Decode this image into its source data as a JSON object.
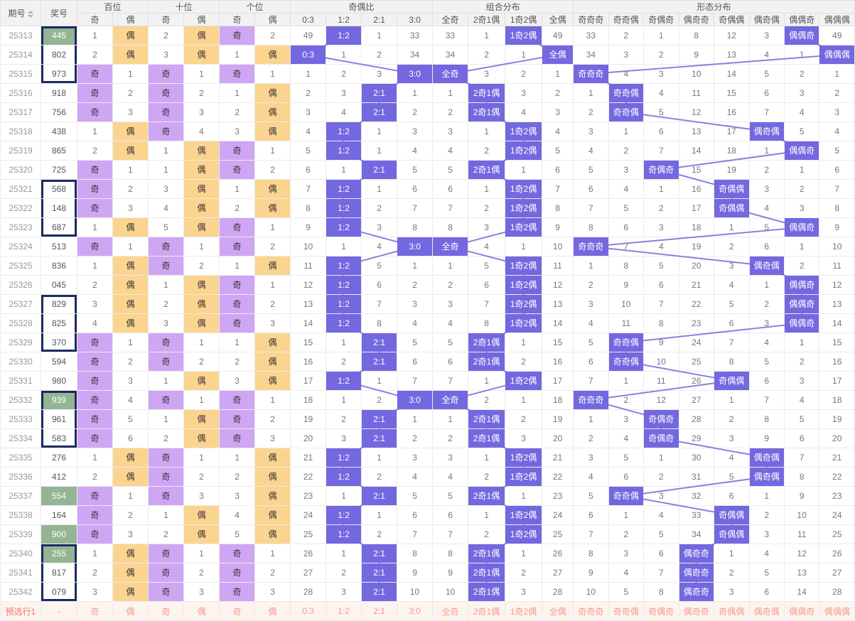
{
  "columns": {
    "period_label": "期号",
    "number_label": "奖号",
    "groups": [
      {
        "label": "百位",
        "cols": [
          "奇",
          "偶"
        ]
      },
      {
        "label": "十位",
        "cols": [
          "奇",
          "偶"
        ]
      },
      {
        "label": "个位",
        "cols": [
          "奇",
          "偶"
        ]
      },
      {
        "label": "奇偶比",
        "cols": [
          "0:3",
          "1:2",
          "2:1",
          "3:0"
        ]
      },
      {
        "label": "组合分布",
        "cols": [
          "全奇",
          "2奇1偶",
          "1奇2偶",
          "全偶"
        ]
      },
      {
        "label": "形态分布",
        "cols": [
          "奇奇奇",
          "奇奇偶",
          "奇偶奇",
          "偶奇奇",
          "奇偶偶",
          "偶奇偶",
          "偶偶奇",
          "偶偶偶"
        ]
      }
    ],
    "flat": [
      "奇",
      "偶",
      "奇",
      "偶",
      "奇",
      "偶",
      "0:3",
      "1:2",
      "2:1",
      "3:0",
      "全奇",
      "2奇1偶",
      "1奇2偶",
      "全偶",
      "奇奇奇",
      "奇奇偶",
      "奇偶奇",
      "偶奇奇",
      "奇偶偶",
      "偶奇偶",
      "偶偶奇",
      "偶偶偶"
    ]
  },
  "rows": [
    {
      "period": "25313",
      "number": "445",
      "green": true,
      "box": "top",
      "cells": [
        "1",
        "偶",
        "2",
        "偶",
        "奇",
        "2",
        "49",
        "1:2",
        "1",
        "33",
        "33",
        "1",
        "1奇2偶",
        "49",
        "33",
        "2",
        "1",
        "8",
        "12",
        "3",
        "偶偶奇",
        "49"
      ]
    },
    {
      "period": "25314",
      "number": "802",
      "green": false,
      "box": "mid",
      "cells": [
        "2",
        "偶",
        "3",
        "偶",
        "1",
        "偶",
        "0:3",
        "1",
        "2",
        "34",
        "34",
        "2",
        "1",
        "全偶",
        "34",
        "3",
        "2",
        "9",
        "13",
        "4",
        "1",
        "偶偶偶"
      ]
    },
    {
      "period": "25315",
      "number": "973",
      "green": false,
      "box": "bottom",
      "cells": [
        "奇",
        "1",
        "奇",
        "1",
        "奇",
        "1",
        "1",
        "2",
        "3",
        "3:0",
        "全奇",
        "3",
        "2",
        "1",
        "奇奇奇",
        "4",
        "3",
        "10",
        "14",
        "5",
        "2",
        "1"
      ]
    },
    {
      "period": "25316",
      "number": "918",
      "green": false,
      "box": "",
      "cells": [
        "奇",
        "2",
        "奇",
        "2",
        "1",
        "偶",
        "2",
        "3",
        "2:1",
        "1",
        "1",
        "2奇1偶",
        "3",
        "2",
        "1",
        "奇奇偶",
        "4",
        "11",
        "15",
        "6",
        "3",
        "2"
      ]
    },
    {
      "period": "25317",
      "number": "756",
      "green": false,
      "box": "",
      "cells": [
        "奇",
        "3",
        "奇",
        "3",
        "2",
        "偶",
        "3",
        "4",
        "2:1",
        "2",
        "2",
        "2奇1偶",
        "4",
        "3",
        "2",
        "奇奇偶",
        "5",
        "12",
        "16",
        "7",
        "4",
        "3"
      ]
    },
    {
      "period": "25318",
      "number": "438",
      "green": false,
      "box": "",
      "cells": [
        "1",
        "偶",
        "奇",
        "4",
        "3",
        "偶",
        "4",
        "1:2",
        "1",
        "3",
        "3",
        "1",
        "1奇2偶",
        "4",
        "3",
        "1",
        "6",
        "13",
        "17",
        "偶奇偶",
        "5",
        "4"
      ]
    },
    {
      "period": "25319",
      "number": "865",
      "green": false,
      "box": "",
      "cells": [
        "2",
        "偶",
        "1",
        "偶",
        "奇",
        "1",
        "5",
        "1:2",
        "1",
        "4",
        "4",
        "2",
        "1奇2偶",
        "5",
        "4",
        "2",
        "7",
        "14",
        "18",
        "1",
        "偶偶奇",
        "5"
      ]
    },
    {
      "period": "25320",
      "number": "725",
      "green": false,
      "box": "",
      "cells": [
        "奇",
        "1",
        "1",
        "偶",
        "奇",
        "2",
        "6",
        "1",
        "2:1",
        "5",
        "5",
        "2奇1偶",
        "1",
        "6",
        "5",
        "3",
        "奇偶奇",
        "15",
        "19",
        "2",
        "1",
        "6"
      ]
    },
    {
      "period": "25321",
      "number": "568",
      "green": false,
      "box": "top",
      "cells": [
        "奇",
        "2",
        "3",
        "偶",
        "1",
        "偶",
        "7",
        "1:2",
        "1",
        "6",
        "6",
        "1",
        "1奇2偶",
        "7",
        "6",
        "4",
        "1",
        "16",
        "奇偶偶",
        "3",
        "2",
        "7"
      ]
    },
    {
      "period": "25322",
      "number": "148",
      "green": false,
      "box": "mid",
      "cells": [
        "奇",
        "3",
        "4",
        "偶",
        "2",
        "偶",
        "8",
        "1:2",
        "2",
        "7",
        "7",
        "2",
        "1奇2偶",
        "8",
        "7",
        "5",
        "2",
        "17",
        "奇偶偶",
        "4",
        "3",
        "8"
      ]
    },
    {
      "period": "25323",
      "number": "687",
      "green": false,
      "box": "bottom",
      "cells": [
        "1",
        "偶",
        "5",
        "偶",
        "奇",
        "1",
        "9",
        "1:2",
        "3",
        "8",
        "8",
        "3",
        "1奇2偶",
        "9",
        "8",
        "6",
        "3",
        "18",
        "1",
        "5",
        "偶偶奇",
        "9"
      ]
    },
    {
      "period": "25324",
      "number": "513",
      "green": false,
      "box": "",
      "cells": [
        "奇",
        "1",
        "奇",
        "1",
        "奇",
        "2",
        "10",
        "1",
        "4",
        "3:0",
        "全奇",
        "4",
        "1",
        "10",
        "奇奇奇",
        "7",
        "4",
        "19",
        "2",
        "6",
        "1",
        "10"
      ]
    },
    {
      "period": "25325",
      "number": "836",
      "green": false,
      "box": "",
      "cells": [
        "1",
        "偶",
        "奇",
        "2",
        "1",
        "偶",
        "11",
        "1:2",
        "5",
        "1",
        "1",
        "5",
        "1奇2偶",
        "11",
        "1",
        "8",
        "5",
        "20",
        "3",
        "偶奇偶",
        "2",
        "11"
      ]
    },
    {
      "period": "25326",
      "number": "045",
      "green": false,
      "box": "",
      "cells": [
        "2",
        "偶",
        "1",
        "偶",
        "奇",
        "1",
        "12",
        "1:2",
        "6",
        "2",
        "2",
        "6",
        "1奇2偶",
        "12",
        "2",
        "9",
        "6",
        "21",
        "4",
        "1",
        "偶偶奇",
        "12"
      ]
    },
    {
      "period": "25327",
      "number": "829",
      "green": false,
      "box": "top",
      "cells": [
        "3",
        "偶",
        "2",
        "偶",
        "奇",
        "2",
        "13",
        "1:2",
        "7",
        "3",
        "3",
        "7",
        "1奇2偶",
        "13",
        "3",
        "10",
        "7",
        "22",
        "5",
        "2",
        "偶偶奇",
        "13"
      ]
    },
    {
      "period": "25328",
      "number": "825",
      "green": false,
      "box": "mid",
      "cells": [
        "4",
        "偶",
        "3",
        "偶",
        "奇",
        "3",
        "14",
        "1:2",
        "8",
        "4",
        "4",
        "8",
        "1奇2偶",
        "14",
        "4",
        "11",
        "8",
        "23",
        "6",
        "3",
        "偶偶奇",
        "14"
      ]
    },
    {
      "period": "25329",
      "number": "370",
      "green": false,
      "box": "bottom",
      "cells": [
        "奇",
        "1",
        "奇",
        "1",
        "1",
        "偶",
        "15",
        "1",
        "2:1",
        "5",
        "5",
        "2奇1偶",
        "1",
        "15",
        "5",
        "奇奇偶",
        "9",
        "24",
        "7",
        "4",
        "1",
        "15"
      ]
    },
    {
      "period": "25330",
      "number": "594",
      "green": false,
      "box": "",
      "cells": [
        "奇",
        "2",
        "奇",
        "2",
        "2",
        "偶",
        "16",
        "2",
        "2:1",
        "6",
        "6",
        "2奇1偶",
        "2",
        "16",
        "6",
        "奇奇偶",
        "10",
        "25",
        "8",
        "5",
        "2",
        "16"
      ]
    },
    {
      "period": "25331",
      "number": "980",
      "green": false,
      "box": "",
      "cells": [
        "奇",
        "3",
        "1",
        "偶",
        "3",
        "偶",
        "17",
        "1:2",
        "1",
        "7",
        "7",
        "1",
        "1奇2偶",
        "17",
        "7",
        "1",
        "11",
        "26",
        "奇偶偶",
        "6",
        "3",
        "17"
      ]
    },
    {
      "period": "25332",
      "number": "939",
      "green": true,
      "box": "top",
      "cells": [
        "奇",
        "4",
        "奇",
        "1",
        "奇",
        "1",
        "18",
        "1",
        "2",
        "3:0",
        "全奇",
        "2",
        "1",
        "18",
        "奇奇奇",
        "2",
        "12",
        "27",
        "1",
        "7",
        "4",
        "18"
      ]
    },
    {
      "period": "25333",
      "number": "961",
      "green": false,
      "box": "mid",
      "cells": [
        "奇",
        "5",
        "1",
        "偶",
        "奇",
        "2",
        "19",
        "2",
        "2:1",
        "1",
        "1",
        "2奇1偶",
        "2",
        "19",
        "1",
        "3",
        "奇偶奇",
        "28",
        "2",
        "8",
        "5",
        "19"
      ]
    },
    {
      "period": "25334",
      "number": "583",
      "green": false,
      "box": "bottom",
      "cells": [
        "奇",
        "6",
        "2",
        "偶",
        "奇",
        "3",
        "20",
        "3",
        "2:1",
        "2",
        "2",
        "2奇1偶",
        "3",
        "20",
        "2",
        "4",
        "奇偶奇",
        "29",
        "3",
        "9",
        "6",
        "20"
      ]
    },
    {
      "period": "25335",
      "number": "276",
      "green": false,
      "box": "",
      "cells": [
        "1",
        "偶",
        "奇",
        "1",
        "1",
        "偶",
        "21",
        "1:2",
        "1",
        "3",
        "3",
        "1",
        "1奇2偶",
        "21",
        "3",
        "5",
        "1",
        "30",
        "4",
        "偶奇偶",
        "7",
        "21"
      ]
    },
    {
      "period": "25336",
      "number": "412",
      "green": false,
      "box": "",
      "cells": [
        "2",
        "偶",
        "奇",
        "2",
        "2",
        "偶",
        "22",
        "1:2",
        "2",
        "4",
        "4",
        "2",
        "1奇2偶",
        "22",
        "4",
        "6",
        "2",
        "31",
        "5",
        "偶奇偶",
        "8",
        "22"
      ]
    },
    {
      "period": "25337",
      "number": "554",
      "green": true,
      "box": "",
      "cells": [
        "奇",
        "1",
        "奇",
        "3",
        "3",
        "偶",
        "23",
        "1",
        "2:1",
        "5",
        "5",
        "2奇1偶",
        "1",
        "23",
        "5",
        "奇奇偶",
        "3",
        "32",
        "6",
        "1",
        "9",
        "23"
      ]
    },
    {
      "period": "25338",
      "number": "164",
      "green": false,
      "box": "",
      "cells": [
        "奇",
        "2",
        "1",
        "偶",
        "4",
        "偶",
        "24",
        "1:2",
        "1",
        "6",
        "6",
        "1",
        "1奇2偶",
        "24",
        "6",
        "1",
        "4",
        "33",
        "奇偶偶",
        "2",
        "10",
        "24"
      ]
    },
    {
      "period": "25339",
      "number": "900",
      "green": true,
      "box": "",
      "cells": [
        "奇",
        "3",
        "2",
        "偶",
        "5",
        "偶",
        "25",
        "1:2",
        "2",
        "7",
        "7",
        "2",
        "1奇2偶",
        "25",
        "7",
        "2",
        "5",
        "34",
        "奇偶偶",
        "3",
        "11",
        "25"
      ]
    },
    {
      "period": "25340",
      "number": "255",
      "green": true,
      "box": "top",
      "cells": [
        "1",
        "偶",
        "奇",
        "1",
        "奇",
        "1",
        "26",
        "1",
        "2:1",
        "8",
        "8",
        "2奇1偶",
        "1",
        "26",
        "8",
        "3",
        "6",
        "偶奇奇",
        "1",
        "4",
        "12",
        "26"
      ]
    },
    {
      "period": "25341",
      "number": "817",
      "green": false,
      "box": "mid",
      "cells": [
        "2",
        "偶",
        "奇",
        "2",
        "奇",
        "2",
        "27",
        "2",
        "2:1",
        "9",
        "9",
        "2奇1偶",
        "2",
        "27",
        "9",
        "4",
        "7",
        "偶奇奇",
        "2",
        "5",
        "13",
        "27"
      ]
    },
    {
      "period": "25342",
      "number": "079",
      "green": false,
      "box": "bottom",
      "cells": [
        "3",
        "偶",
        "奇",
        "3",
        "奇",
        "3",
        "28",
        "3",
        "2:1",
        "10",
        "10",
        "2奇1偶",
        "3",
        "28",
        "10",
        "5",
        "8",
        "偶奇奇",
        "3",
        "6",
        "14",
        "28"
      ]
    }
  ],
  "footer": {
    "label": "预选行1",
    "number": "-",
    "cells": [
      "奇",
      "偶",
      "奇",
      "偶",
      "奇",
      "偶",
      "0:3",
      "1:2",
      "2:1",
      "3:0",
      "全奇",
      "2奇1偶",
      "1奇2偶",
      "全偶",
      "奇奇奇",
      "奇奇偶",
      "奇偶奇",
      "偶奇奇",
      "奇偶偶",
      "偶奇偶",
      "偶偶奇",
      "偶偶偶"
    ]
  },
  "colors": {
    "odd_hit": "#cfa6f3",
    "even_hit": "#fbd490",
    "blue_hit": "#7368df",
    "line": "#8a80dd",
    "green_cell": "#93b593",
    "box_border": "#1d2b5f"
  }
}
